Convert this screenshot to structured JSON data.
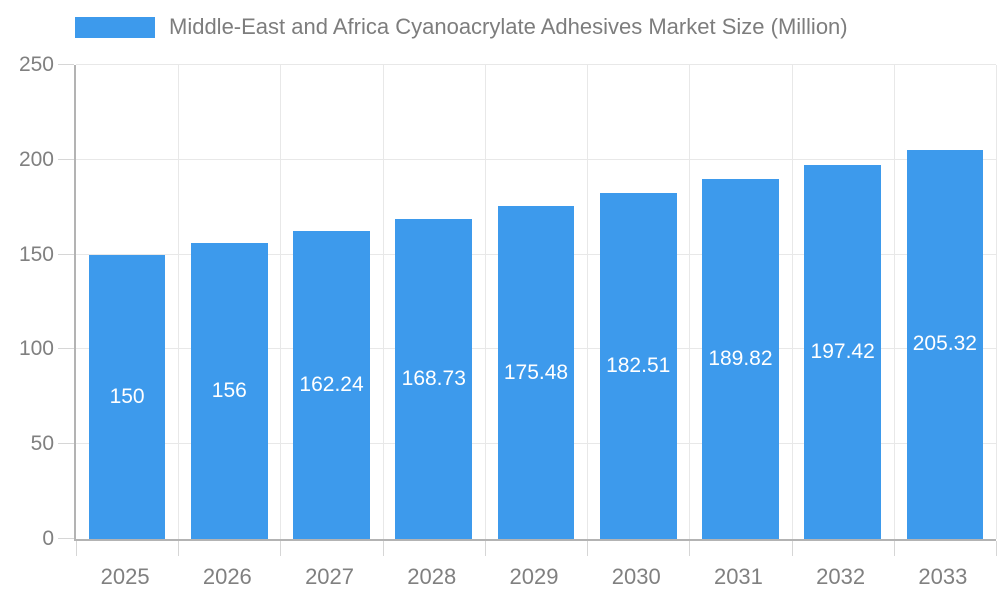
{
  "legend": {
    "label": "Middle-East and Africa Cyanoacrylate Adhesives Market Size (Million)"
  },
  "chart_data": {
    "type": "bar",
    "title": "Middle-East and Africa Cyanoacrylate Adhesives Market Size (Million)",
    "categories": [
      "2025",
      "2026",
      "2027",
      "2028",
      "2029",
      "2030",
      "2031",
      "2032",
      "2033"
    ],
    "values": [
      150,
      156,
      162.24,
      168.73,
      175.48,
      182.51,
      189.82,
      197.42,
      205.32
    ],
    "bar_labels": [
      "150",
      "156",
      "162.24",
      "168.73",
      "175.48",
      "182.51",
      "189.82",
      "197.42",
      "205.32"
    ],
    "xlabel": "",
    "ylabel": "",
    "ylim": [
      0,
      250
    ],
    "yticks": [
      0,
      50,
      100,
      150,
      200,
      250
    ],
    "grid": true,
    "legend_position": "top-left",
    "colors": {
      "bar": "#3d9aec",
      "bar_label": "#ffffff",
      "axis_line": "#b3b3b3",
      "gridline": "#e8e8e8",
      "tick": "#d6d6d6",
      "text": "#808080",
      "title_text": "#7d7d7d"
    }
  }
}
